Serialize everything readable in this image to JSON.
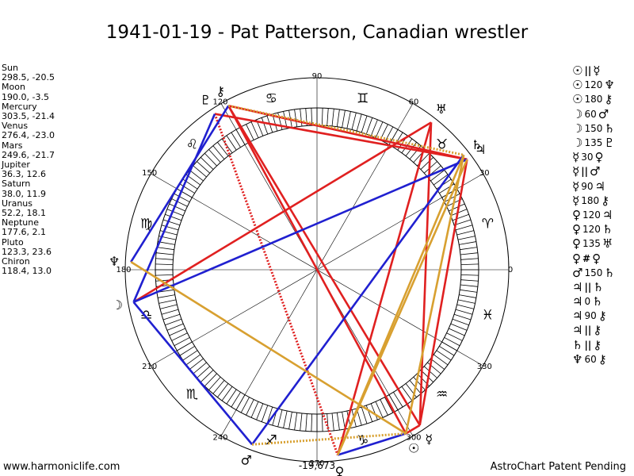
{
  "title": "1941-01-19 - Pat Patterson, Canadian wrestler",
  "positions": [
    {
      "name": "Sun",
      "value": "298.5, -20.5"
    },
    {
      "name": "Moon",
      "value": "190.0, -3.5"
    },
    {
      "name": "Mercury",
      "value": "303.5, -21.4"
    },
    {
      "name": "Venus",
      "value": "276.4, -23.0"
    },
    {
      "name": "Mars",
      "value": "249.6, -21.7"
    },
    {
      "name": "Jupiter",
      "value": "36.3, 12.6"
    },
    {
      "name": "Saturn",
      "value": "38.0, 11.9"
    },
    {
      "name": "Uranus",
      "value": "52.2, 18.1"
    },
    {
      "name": "Neptune",
      "value": "177.6, 2.1"
    },
    {
      "name": "Pluto",
      "value": "123.3, 23.6"
    },
    {
      "name": "Chiron",
      "value": "118.4, 13.0"
    }
  ],
  "aspects": [
    {
      "p1": "☉",
      "sym": "||",
      "angle": "",
      "p2": "☿"
    },
    {
      "p1": "☉",
      "sym": "",
      "angle": "120",
      "p2": "♆"
    },
    {
      "p1": "☉",
      "sym": "",
      "angle": "180",
      "p2": "⚷"
    },
    {
      "p1": "☽",
      "sym": "",
      "angle": "60",
      "p2": "♂"
    },
    {
      "p1": "☽",
      "sym": "",
      "angle": "150",
      "p2": "♄"
    },
    {
      "p1": "☽",
      "sym": "",
      "angle": "135",
      "p2": "♇"
    },
    {
      "p1": "☿",
      "sym": "",
      "angle": "30",
      "p2": "♀"
    },
    {
      "p1": "☿",
      "sym": "||",
      "angle": "",
      "p2": "♂"
    },
    {
      "p1": "☿",
      "sym": "",
      "angle": "90",
      "p2": "♃"
    },
    {
      "p1": "☿",
      "sym": "",
      "angle": "180",
      "p2": "⚷"
    },
    {
      "p1": "♀",
      "sym": "",
      "angle": "120",
      "p2": "♃"
    },
    {
      "p1": "♀",
      "sym": "",
      "angle": "120",
      "p2": "♄"
    },
    {
      "p1": "♀",
      "sym": "",
      "angle": "135",
      "p2": "♅"
    },
    {
      "p1": "♀",
      "sym": "#",
      "angle": "",
      "p2": "♀"
    },
    {
      "p1": "♂",
      "sym": "",
      "angle": "150",
      "p2": "♄"
    },
    {
      "p1": "♃",
      "sym": "||",
      "angle": "",
      "p2": "♄"
    },
    {
      "p1": "♃",
      "sym": "",
      "angle": "0",
      "p2": "♄"
    },
    {
      "p1": "♃",
      "sym": "",
      "angle": "90",
      "p2": "⚷"
    },
    {
      "p1": "♃",
      "sym": "||",
      "angle": "",
      "p2": "⚷"
    },
    {
      "p1": "♄",
      "sym": "||",
      "angle": "",
      "p2": "⚷"
    },
    {
      "p1": "♆",
      "sym": "",
      "angle": "60",
      "p2": "⚷"
    }
  ],
  "wheel": {
    "degree_labels": [
      "0",
      "30",
      "60",
      "90",
      "120",
      "150",
      "180",
      "210",
      "240",
      "270",
      "300",
      "330"
    ],
    "center_value": "-19,673",
    "sign_glyphs": [
      "♈",
      "♉",
      "♊",
      "♋",
      "♌",
      "♍",
      "♎",
      "♏",
      "♐",
      "♑",
      "♒",
      "♓"
    ],
    "planet_glyphs": [
      {
        "name": "sun-glyph",
        "glyph": "☉",
        "lon": 298.5
      },
      {
        "name": "moon-glyph",
        "glyph": "☽",
        "lon": 190.0
      },
      {
        "name": "mercury-glyph",
        "glyph": "☿",
        "lon": 303.5
      },
      {
        "name": "venus-glyph",
        "glyph": "♀",
        "lon": 276.4
      },
      {
        "name": "mars-glyph",
        "glyph": "♂",
        "lon": 249.6
      },
      {
        "name": "jupiter-glyph",
        "glyph": "♃",
        "lon": 36.3
      },
      {
        "name": "saturn-glyph",
        "glyph": "♄",
        "lon": 38.0
      },
      {
        "name": "uranus-glyph",
        "glyph": "♅",
        "lon": 52.2
      },
      {
        "name": "neptune-glyph",
        "glyph": "♆",
        "lon": 177.6
      },
      {
        "name": "pluto-glyph",
        "glyph": "♇",
        "lon": 123.3
      },
      {
        "name": "chiron-glyph",
        "glyph": "⚷",
        "lon": 118.4
      }
    ],
    "aspect_lines": [
      {
        "a": 298.5,
        "b": 303.5,
        "color": "#e02020",
        "style": "solid"
      },
      {
        "a": 298.5,
        "b": 118.4,
        "color": "#e02020",
        "style": "solid"
      },
      {
        "a": 303.5,
        "b": 118.4,
        "color": "#e02020",
        "style": "solid"
      },
      {
        "a": 118.4,
        "b": 36.3,
        "color": "#e02020",
        "style": "solid"
      },
      {
        "a": 123.3,
        "b": 36.3,
        "color": "#e02020",
        "style": "solid"
      },
      {
        "a": 190.0,
        "b": 52.2,
        "color": "#e02020",
        "style": "solid"
      },
      {
        "a": 52.2,
        "b": 303.5,
        "color": "#e02020",
        "style": "solid"
      },
      {
        "a": 36.3,
        "b": 303.5,
        "color": "#e02020",
        "style": "solid"
      },
      {
        "a": 276.4,
        "b": 52.2,
        "color": "#e02020",
        "style": "solid"
      },
      {
        "a": 123.3,
        "b": 276.4,
        "color": "#e02020",
        "style": "dotted"
      },
      {
        "a": 123.3,
        "b": 190.0,
        "color": "#2020d0",
        "style": "solid"
      },
      {
        "a": 190.0,
        "b": 249.6,
        "color": "#2020d0",
        "style": "solid"
      },
      {
        "a": 177.6,
        "b": 118.4,
        "color": "#2020d0",
        "style": "solid"
      },
      {
        "a": 249.6,
        "b": 38.0,
        "color": "#2020d0",
        "style": "solid"
      },
      {
        "a": 190.0,
        "b": 36.3,
        "color": "#2020d0",
        "style": "solid"
      },
      {
        "a": 276.4,
        "b": 298.5,
        "color": "#2020d0",
        "style": "solid"
      },
      {
        "a": 177.6,
        "b": 298.5,
        "color": "#d8a030",
        "style": "solid"
      },
      {
        "a": 276.4,
        "b": 36.3,
        "color": "#d8a030",
        "style": "solid"
      },
      {
        "a": 276.4,
        "b": 38.0,
        "color": "#d8a030",
        "style": "solid"
      },
      {
        "a": 298.5,
        "b": 38.0,
        "color": "#d8a030",
        "style": "solid"
      },
      {
        "a": 118.4,
        "b": 38.0,
        "color": "#d8a030",
        "style": "dotted"
      },
      {
        "a": 249.6,
        "b": 298.5,
        "color": "#d8a030",
        "style": "dotted"
      }
    ]
  },
  "footer": {
    "left": "www.harmoniclife.com",
    "right": "AstroChart Patent Pending"
  }
}
